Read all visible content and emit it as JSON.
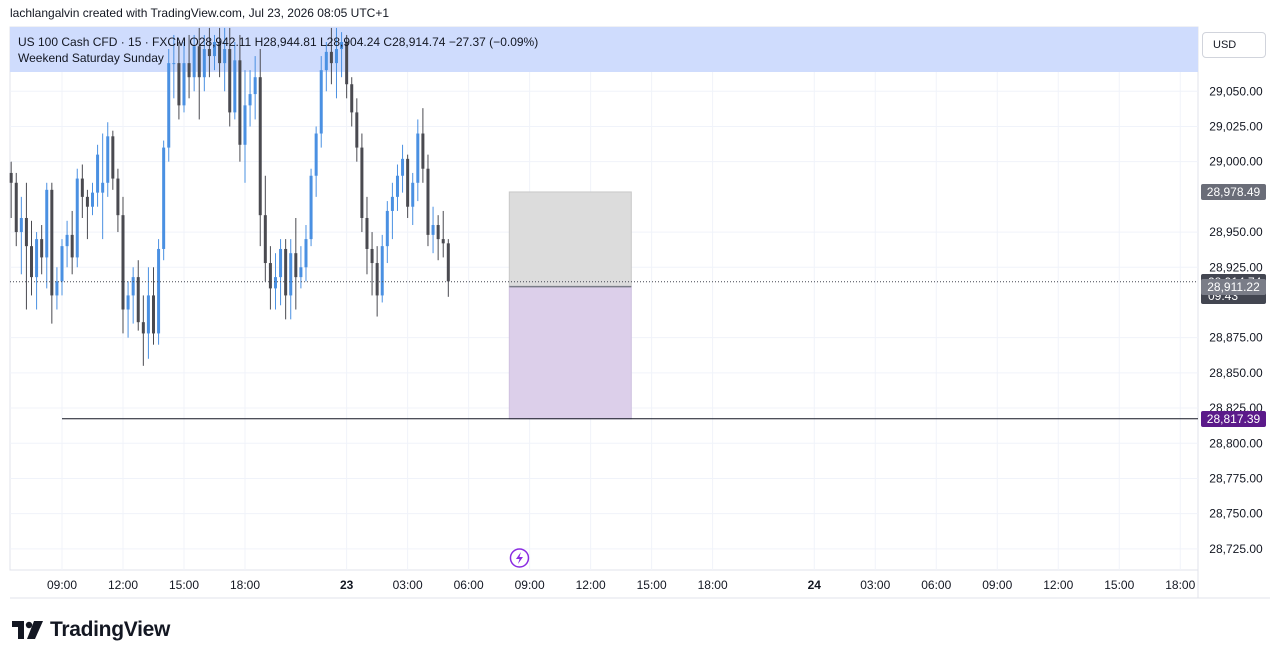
{
  "credit": "lachlangalvin created with TradingView.com, Jul 23, 2026 08:05 UTC+1",
  "legend": {
    "symbol": "US 100 Cash CFD · 15 · FXCM",
    "o_label": "O",
    "o_value": "28,942.11",
    "h_label": "H",
    "h_value": "28,944.81",
    "l_label": "L",
    "l_value": "28,904.24",
    "c_label": "C",
    "c_value": "28,914.74",
    "change": "−27.37 (−0.09%)",
    "session_note": "Weekend Saturday Sunday"
  },
  "currency": "USD",
  "brand": "TradingView",
  "colors": {
    "up": "#4a90e2",
    "down": "#4a4a50",
    "session_band": "#cfdcfd",
    "stop_zone": "#dcdcdc",
    "target_zone": "#dccfea",
    "level_tag": "#5b1a8a",
    "current_tag": "#434651",
    "marker": "#8a2be2"
  },
  "chart_data": {
    "type": "candlestick",
    "ylim": [
      28705,
      29085
    ],
    "y_ticks": [
      "29,050.00",
      "29,025.00",
      "29,000.00",
      "28,950.00",
      "28,925.00",
      "28,875.00",
      "28,850.00",
      "28,825.00",
      "28,800.00",
      "28,775.00",
      "28,750.00",
      "28,725.00"
    ],
    "y_tick_values": [
      29050,
      29025,
      29000,
      28950,
      28925,
      28875,
      28850,
      28825,
      28800,
      28775,
      28750,
      28725
    ],
    "x_ticks": [
      {
        "label": "09:00",
        "bar": 0
      },
      {
        "label": "12:00",
        "bar": 12
      },
      {
        "label": "15:00",
        "bar": 24
      },
      {
        "label": "18:00",
        "bar": 36
      },
      {
        "label": "23",
        "bar": 56
      },
      {
        "label": "03:00",
        "bar": 68
      },
      {
        "label": "06:00",
        "bar": 80
      },
      {
        "label": "09:00",
        "bar": 92
      },
      {
        "label": "12:00",
        "bar": 104
      },
      {
        "label": "15:00",
        "bar": 116
      },
      {
        "label": "18:00",
        "bar": 128
      },
      {
        "label": "24",
        "bar": 148
      },
      {
        "label": "03:00",
        "bar": 160
      },
      {
        "label": "06:00",
        "bar": 172
      },
      {
        "label": "09:00",
        "bar": 184
      },
      {
        "label": "12:00",
        "bar": 196
      },
      {
        "label": "15:00",
        "bar": 208
      },
      {
        "label": "18:00",
        "bar": 220
      }
    ],
    "first_bar_index": -10,
    "candles": [
      [
        28992,
        29000,
        28960,
        28985
      ],
      [
        28985,
        28992,
        28940,
        28950
      ],
      [
        28950,
        28975,
        28920,
        28960
      ],
      [
        28960,
        28985,
        28895,
        28940
      ],
      [
        28940,
        28958,
        28905,
        28918
      ],
      [
        28918,
        28950,
        28895,
        28945
      ],
      [
        28945,
        28955,
        28920,
        28932
      ],
      [
        28932,
        28985,
        28910,
        28980
      ],
      [
        28980,
        28985,
        28885,
        28905
      ],
      [
        28905,
        28925,
        28895,
        28915
      ],
      [
        28915,
        28945,
        28905,
        28940
      ],
      [
        28940,
        28958,
        28925,
        28948
      ],
      [
        28948,
        28965,
        28920,
        28932
      ],
      [
        28932,
        28995,
        28925,
        28988
      ],
      [
        28988,
        28998,
        28960,
        28975
      ],
      [
        28975,
        28980,
        28945,
        28968
      ],
      [
        28968,
        28985,
        28962,
        28978
      ],
      [
        28978,
        29012,
        28968,
        29005
      ],
      [
        28978,
        29020,
        28945,
        28985
      ],
      [
        28985,
        29028,
        28975,
        29018
      ],
      [
        29018,
        29022,
        28980,
        28988
      ],
      [
        28988,
        28995,
        28950,
        28962
      ],
      [
        28962,
        28975,
        28878,
        28895
      ],
      [
        28895,
        28915,
        28875,
        28905
      ],
      [
        28905,
        28925,
        28885,
        28918
      ],
      [
        28918,
        28930,
        28880,
        28886
      ],
      [
        28886,
        28905,
        28855,
        28878
      ],
      [
        28878,
        28925,
        28860,
        28905
      ],
      [
        28905,
        28925,
        28870,
        28878
      ],
      [
        28878,
        28945,
        28870,
        28938
      ],
      [
        28938,
        29015,
        28930,
        29010
      ],
      [
        29010,
        29080,
        29000,
        29070
      ],
      [
        29070,
        29090,
        29045,
        29070
      ],
      [
        29070,
        29085,
        29030,
        29040
      ],
      [
        29040,
        29085,
        29035,
        29070
      ],
      [
        29070,
        29090,
        29045,
        29060
      ],
      [
        29060,
        29090,
        29050,
        29082
      ],
      [
        29082,
        29095,
        29030,
        29060
      ],
      [
        29060,
        29090,
        29050,
        29080
      ],
      [
        29080,
        29095,
        29060,
        29075
      ],
      [
        29075,
        29090,
        29065,
        29085
      ],
      [
        29085,
        29095,
        29060,
        29070
      ],
      [
        29070,
        29095,
        29050,
        29080
      ],
      [
        29080,
        29095,
        29025,
        29035
      ],
      [
        29035,
        29085,
        29030,
        29072
      ],
      [
        29072,
        29090,
        29000,
        29012
      ],
      [
        29012,
        29065,
        28985,
        29040
      ],
      [
        29040,
        29065,
        29025,
        29048
      ],
      [
        29048,
        29075,
        29030,
        29060
      ],
      [
        29060,
        29080,
        28940,
        28962
      ],
      [
        28962,
        28990,
        28915,
        28928
      ],
      [
        28928,
        28940,
        28895,
        28910
      ],
      [
        28910,
        28935,
        28895,
        28918
      ],
      [
        28918,
        28945,
        28898,
        28938
      ],
      [
        28938,
        28945,
        28888,
        28905
      ],
      [
        28905,
        28945,
        28888,
        28935
      ],
      [
        28935,
        28960,
        28895,
        28918
      ],
      [
        28918,
        28940,
        28910,
        28925
      ],
      [
        28925,
        28955,
        28915,
        28945
      ],
      [
        28945,
        28995,
        28940,
        28990
      ],
      [
        28990,
        29025,
        28975,
        29020
      ],
      [
        29020,
        29075,
        29010,
        29065
      ],
      [
        29065,
        29085,
        29050,
        29078
      ],
      [
        29078,
        29095,
        29055,
        29070
      ],
      [
        29070,
        29095,
        29045,
        29080
      ],
      [
        29080,
        29092,
        29060,
        29085
      ],
      [
        29085,
        29090,
        29045,
        29055
      ],
      [
        29055,
        29060,
        29025,
        29035
      ],
      [
        29035,
        29045,
        29000,
        29010
      ],
      [
        29010,
        29020,
        28950,
        28960
      ],
      [
        28960,
        28975,
        28920,
        28938
      ],
      [
        28938,
        28950,
        28905,
        28928
      ],
      [
        28928,
        28940,
        28890,
        28905
      ],
      [
        28905,
        28948,
        28900,
        28940
      ],
      [
        28940,
        28972,
        28928,
        28965
      ],
      [
        28965,
        28985,
        28945,
        28975
      ],
      [
        28975,
        28998,
        28965,
        28990
      ],
      [
        28990,
        29012,
        28978,
        29002
      ],
      [
        29002,
        29005,
        28960,
        28968
      ],
      [
        28968,
        28992,
        28955,
        28985
      ],
      [
        28985,
        29030,
        28972,
        29020
      ],
      [
        29020,
        29038,
        28985,
        28995
      ],
      [
        28995,
        29005,
        28940,
        28948
      ],
      [
        28948,
        28968,
        28935,
        28955
      ],
      [
        28955,
        28962,
        28930,
        28945
      ],
      [
        28945,
        28965,
        28932,
        28942
      ],
      [
        28942,
        28945,
        28904,
        28915
      ]
    ],
    "last_price": "28,914.74",
    "countdown": "09:43",
    "levels": [
      {
        "label": "28,978.49",
        "value": 28978.49
      },
      {
        "label": "28,911.22",
        "value": 28911.22
      },
      {
        "label": "28,817.39",
        "value": 28817.39
      }
    ],
    "position_tool": {
      "entry": 28911.22,
      "stop": 28978.49,
      "target": 28817.39,
      "start_bar": 88,
      "end_bar": 112
    },
    "horizontal_line": {
      "value": 28817.39,
      "start_bar": 0
    }
  }
}
